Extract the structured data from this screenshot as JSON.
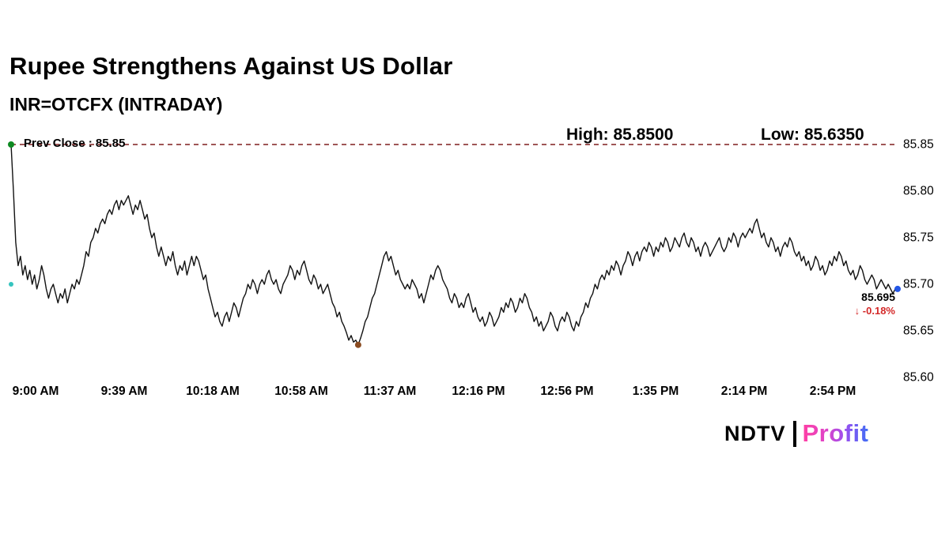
{
  "header": {
    "title": "Rupee Strengthens Against US Dollar",
    "subtitle": "INR=OTCFX (INTRADAY)"
  },
  "overlay": {
    "prev_close_label": "Prev Close : 85.85",
    "high_label": "High: 85.8500",
    "low_label": "Low: 85.6350",
    "last_price": "85.695",
    "change_arrow": "↓",
    "change": "-0.18%"
  },
  "logo": {
    "ndtv": "NDTV",
    "profit": "Profit"
  },
  "colors": {
    "line": "#121212",
    "prev_close_line": "#7f1d1d",
    "change_red": "#d42a2a",
    "marker_start": "#0d8a22",
    "marker_open": "#35c4bf",
    "marker_low": "#8a4b20",
    "marker_end": "#2457e6"
  },
  "chart_data": {
    "type": "line",
    "title": "Rupee Strengthens Against US Dollar",
    "symbol": "INR=OTCFX (INTRADAY)",
    "x_ticks": [
      "9:00 AM",
      "9:39 AM",
      "10:18 AM",
      "10:58 AM",
      "11:37 AM",
      "12:16 PM",
      "12:56 PM",
      "1:35 PM",
      "2:14 PM",
      "2:54 PM"
    ],
    "y_ticks": [
      85.85,
      85.8,
      85.75,
      85.7,
      85.65,
      85.6
    ],
    "ylim": [
      85.6,
      85.85
    ],
    "grid": false,
    "legend": "none",
    "prev_close": 85.85,
    "high": 85.85,
    "low": 85.635,
    "last": 85.695,
    "change_pct": -0.18,
    "open_marker_value": 85.7,
    "series": [
      {
        "name": "INR=OTCFX intraday price",
        "start": "9:00 AM",
        "interval_minutes": 1,
        "values": [
          85.85,
          85.8,
          85.745,
          85.72,
          85.73,
          85.71,
          85.72,
          85.705,
          85.715,
          85.7,
          85.71,
          85.695,
          85.705,
          85.72,
          85.71,
          85.695,
          85.685,
          85.695,
          85.7,
          85.69,
          85.68,
          85.69,
          85.685,
          85.695,
          85.68,
          85.69,
          85.7,
          85.695,
          85.705,
          85.7,
          85.71,
          85.72,
          85.735,
          85.73,
          85.745,
          85.75,
          85.76,
          85.755,
          85.765,
          85.77,
          85.765,
          85.775,
          85.78,
          85.775,
          85.785,
          85.79,
          85.78,
          85.79,
          85.785,
          85.79,
          85.795,
          85.785,
          85.775,
          85.785,
          85.78,
          85.79,
          85.78,
          85.77,
          85.775,
          85.76,
          85.75,
          85.755,
          85.74,
          85.73,
          85.74,
          85.73,
          85.72,
          85.73,
          85.725,
          85.735,
          85.72,
          85.71,
          85.72,
          85.715,
          85.725,
          85.71,
          85.72,
          85.73,
          85.72,
          85.73,
          85.725,
          85.715,
          85.705,
          85.71,
          85.695,
          85.685,
          85.675,
          85.665,
          85.67,
          85.66,
          85.655,
          85.665,
          85.67,
          85.66,
          85.67,
          85.68,
          85.675,
          85.665,
          85.675,
          85.685,
          85.69,
          85.7,
          85.695,
          85.705,
          85.7,
          85.69,
          85.7,
          85.705,
          85.7,
          85.71,
          85.715,
          85.705,
          85.7,
          85.705,
          85.695,
          85.69,
          85.7,
          85.705,
          85.71,
          85.72,
          85.715,
          85.705,
          85.715,
          85.71,
          85.72,
          85.725,
          85.715,
          85.705,
          85.7,
          85.71,
          85.705,
          85.695,
          85.7,
          85.69,
          85.695,
          85.7,
          85.69,
          85.68,
          85.675,
          85.665,
          85.67,
          85.66,
          85.655,
          85.648,
          85.64,
          85.645,
          85.638,
          85.64,
          85.635,
          85.642,
          85.65,
          85.66,
          85.665,
          85.675,
          85.685,
          85.69,
          85.7,
          85.71,
          85.72,
          85.73,
          85.735,
          85.725,
          85.73,
          85.72,
          85.71,
          85.715,
          85.705,
          85.7,
          85.695,
          85.7,
          85.695,
          85.705,
          85.7,
          85.695,
          85.685,
          85.69,
          85.68,
          85.69,
          85.7,
          85.71,
          85.705,
          85.715,
          85.72,
          85.715,
          85.705,
          85.7,
          85.695,
          85.685,
          85.68,
          85.69,
          85.685,
          85.675,
          85.68,
          85.675,
          85.685,
          85.69,
          85.68,
          85.67,
          85.675,
          85.665,
          85.66,
          85.665,
          85.655,
          85.66,
          85.67,
          85.665,
          85.655,
          85.66,
          85.665,
          85.675,
          85.67,
          85.68,
          85.675,
          85.685,
          85.68,
          85.67,
          85.675,
          85.685,
          85.68,
          85.69,
          85.685,
          85.675,
          85.67,
          85.66,
          85.665,
          85.655,
          85.66,
          85.65,
          85.655,
          85.66,
          85.67,
          85.665,
          85.655,
          85.65,
          85.66,
          85.665,
          85.66,
          85.67,
          85.665,
          85.655,
          85.65,
          85.66,
          85.655,
          85.665,
          85.67,
          85.68,
          85.675,
          85.685,
          85.69,
          85.7,
          85.695,
          85.705,
          85.71,
          85.705,
          85.715,
          85.71,
          85.72,
          85.715,
          85.725,
          85.72,
          85.71,
          85.72,
          85.725,
          85.735,
          85.73,
          85.72,
          85.73,
          85.735,
          85.725,
          85.735,
          85.74,
          85.735,
          85.745,
          85.74,
          85.73,
          85.74,
          85.735,
          85.745,
          85.74,
          85.75,
          85.745,
          85.735,
          85.74,
          85.75,
          85.745,
          85.74,
          85.75,
          85.755,
          85.745,
          85.74,
          85.75,
          85.745,
          85.735,
          85.74,
          85.73,
          85.74,
          85.745,
          85.74,
          85.73,
          85.735,
          85.74,
          85.745,
          85.75,
          85.74,
          85.735,
          85.74,
          85.75,
          85.745,
          85.755,
          85.75,
          85.74,
          85.75,
          85.755,
          85.75,
          85.755,
          85.76,
          85.755,
          85.765,
          85.77,
          85.76,
          85.75,
          85.755,
          85.745,
          85.74,
          85.75,
          85.745,
          85.735,
          85.74,
          85.73,
          85.74,
          85.745,
          85.74,
          85.75,
          85.745,
          85.735,
          85.73,
          85.735,
          85.725,
          85.73,
          85.72,
          85.725,
          85.715,
          85.72,
          85.73,
          85.725,
          85.715,
          85.72,
          85.71,
          85.715,
          85.725,
          85.72,
          85.73,
          85.725,
          85.735,
          85.73,
          85.72,
          85.725,
          85.715,
          85.71,
          85.715,
          85.705,
          85.71,
          85.72,
          85.715,
          85.705,
          85.7,
          85.705,
          85.71,
          85.705,
          85.695,
          85.7,
          85.705,
          85.7,
          85.695,
          85.7,
          85.695,
          85.69,
          85.695,
          85.695
        ]
      }
    ]
  }
}
